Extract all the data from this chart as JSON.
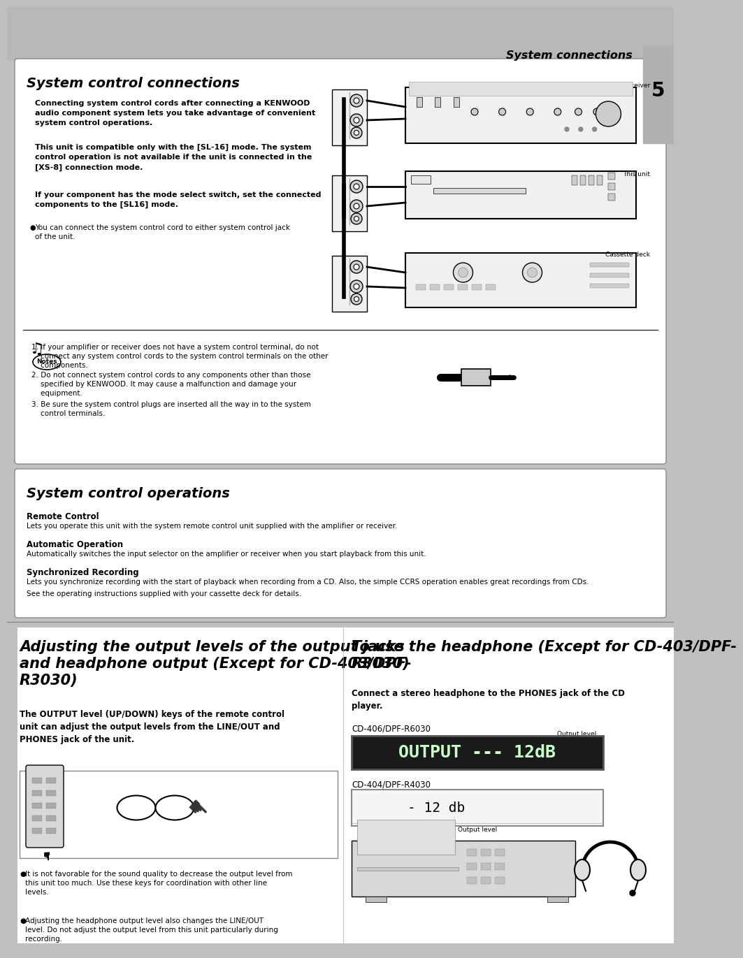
{
  "page_bg": "#c0c0c0",
  "white": "#ffffff",
  "black": "#000000",
  "header_title": "System connections",
  "page_num": "5",
  "s1_title": "System control connections",
  "s1_p1": "Connecting system control cords after connecting a KENWOOD\naudio component system lets you take advantage of convenient\nsystem control operations.",
  "s1_p2": "This unit is compatible only with the [SL-16] mode. The system\ncontrol operation is not available if the unit is connected in the\n[XS-8] connection mode.",
  "s1_p3": "If your component has the mode select switch, set the connected\ncomponents to the [SL16] mode.",
  "s1_b1": "You can connect the system control cord to either system control jack\nof the unit.",
  "n1": "1. If your amplifier or receiver does not have a system control terminal, do not\n    connect any system control cords to the system control terminals on the other\n    components.",
  "n2": "2. Do not connect system control cords to any components other than those\n    specified by KENWOOD. It may cause a malfunction and damage your\n    equipment.",
  "n3": "3. Be sure the system control plugs are inserted all the way in to the system\n    control terminals.",
  "lbl_amp": "Amplifier or receiver",
  "lbl_unit": "This unit",
  "lbl_cass": "Cassette deck",
  "s2_title": "System control operations",
  "s2_rc_h": "Remote Control",
  "s2_rc_t": "Lets you operate this unit with the system remote control unit supplied with the amplifier or receiver.",
  "s2_ao_h": "Automatic Operation",
  "s2_ao_t": "Automatically switches the input selector on the amplifier or receiver when you start playback from this unit.",
  "s2_sr_h": "Synchronized Recording",
  "s2_sr_t1": "Lets you synchronize recording with the start of playback when recording from a CD. Also, the simple CCRS operation enables great recordings from CDs.",
  "s2_sr_t2": "See the operating instructions supplied with your cassette deck for details.",
  "s3_title": "Adjusting the output levels of the output jacks\nand headphone output (Except for CD-403/DPF-\nR3030)",
  "s3_p1": "The OUTPUT level (UP/DOWN) keys of the remote control\nunit can adjust the output levels from the LINE/OUT and\nPHONES jack of the unit.",
  "s3_b1": "It is not favorable for the sound quality to decrease the output level from\nthis unit too much. Use these keys for coordination with other line\nlevels.",
  "s3_b2": "Adjusting the headphone output level also changes the LINE/OUT\nlevel. Do not adjust the output level from this unit particularly during\nrecording.",
  "s4_title": "To use the headphone (Except for CD-403/DPF-\nR3030)",
  "s4_p1": "Connect a stereo headphone to the PHONES jack of the CD\nplayer.",
  "s4_cd406": "CD-406/DPF-R6030",
  "s4_disp406": "OUTPUT --- 12dB",
  "s4_outlbl": "Output level",
  "s4_cd404": "CD-404/DPF-R4030",
  "s4_disp404": "- 12 db",
  "s4_outlbl2": "Output level"
}
